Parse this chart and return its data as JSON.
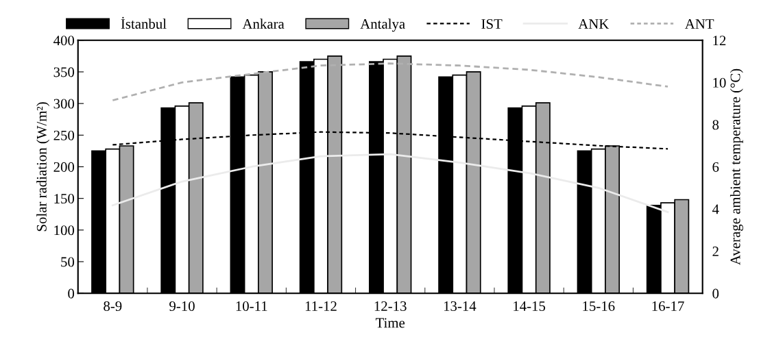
{
  "chart_data": {
    "type": "bar",
    "xlabel": "Time",
    "ylabel": "Solar radiation (W/m²)",
    "y2label": "Average ambient temperature (°C)",
    "categories": [
      "8-9",
      "9-10",
      "10-11",
      "11-12",
      "12-13",
      "13-14",
      "14-15",
      "15-16",
      "16-17"
    ],
    "series": [
      {
        "name": "İstanbul",
        "color": "#000000",
        "values": [
          225,
          293,
          342,
          366,
          366,
          342,
          293,
          225,
          139
        ]
      },
      {
        "name": "Ankara",
        "color": "#ffffff",
        "values": [
          228,
          296,
          345,
          370,
          370,
          345,
          296,
          228,
          143
        ]
      },
      {
        "name": "Antalya",
        "color": "#a6a6a6",
        "values": [
          233,
          301,
          350,
          375,
          375,
          350,
          301,
          233,
          148
        ]
      },
      {
        "name": "IST",
        "type": "line",
        "axis": "y2",
        "color": "#000000",
        "line_style": "dashed",
        "values": [
          7.04,
          7.3,
          7.5,
          7.65,
          7.6,
          7.4,
          7.2,
          7.0,
          6.85
        ]
      },
      {
        "name": "ANK",
        "type": "line",
        "axis": "y2",
        "color": "#ebebeb",
        "line_style": "solid",
        "values": [
          4.17,
          5.3,
          6.0,
          6.5,
          6.6,
          6.2,
          5.7,
          5.0,
          3.85
        ]
      },
      {
        "name": "ANT",
        "type": "line",
        "axis": "y2",
        "color": "#b0b0b0",
        "line_style": "dashed",
        "values": [
          9.15,
          10.0,
          10.4,
          10.8,
          10.9,
          10.8,
          10.6,
          10.25,
          9.8
        ]
      }
    ],
    "ylim": [
      0,
      400
    ],
    "yticks": [
      0,
      50,
      100,
      150,
      200,
      250,
      300,
      350,
      400
    ],
    "y2lim": [
      0,
      12
    ],
    "y2ticks": [
      0,
      2,
      4,
      6,
      8,
      10,
      12
    ],
    "grid": false,
    "legend": "top",
    "marker": "none"
  }
}
